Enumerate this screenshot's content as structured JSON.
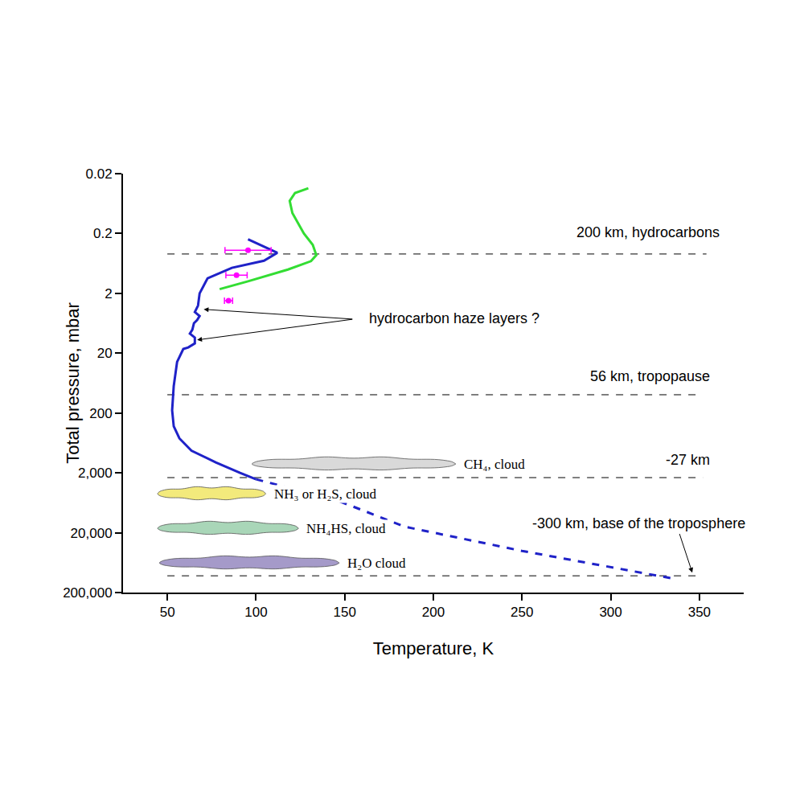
{
  "chart_data": {
    "type": "line",
    "xlabel": "Temperature, K",
    "ylabel": "Total pressure, mbar",
    "xlim": [
      25,
      375
    ],
    "xticks": [
      50,
      100,
      150,
      200,
      250,
      300,
      350
    ],
    "ylim": [
      200000,
      0.02
    ],
    "yticks": [
      0.02,
      0.2,
      2,
      20,
      200,
      {
        "value": 2000,
        "label": "2,000"
      },
      {
        "value": 20000,
        "label": "20,000"
      },
      {
        "value": 200000,
        "label": "200,000"
      }
    ],
    "log": "y",
    "grid": false,
    "series": [
      {
        "type": "line",
        "color": "#1f22c8",
        "line_style": "solid",
        "x": [
          95.5,
          112,
          104.5,
          86.4,
          72.7,
          68.2,
          67.3,
          65.5,
          68.2,
          66.8,
          65,
          64.1,
          62.7,
          65.5,
          65.5,
          61.8,
          59,
          55.5,
          53.6,
          52.7,
          53.6,
          56.8,
          63.6,
          77.3,
          91,
          100
        ],
        "y": [
          0.25,
          0.42,
          0.57,
          0.75,
          1.12,
          2.0,
          3.2,
          4.1,
          4.8,
          5.6,
          6.3,
          8.1,
          9.4,
          11,
          13.7,
          16,
          17,
          28,
          71,
          180,
          332,
          530,
          850,
          1340,
          2000,
          2560
        ]
      },
      {
        "type": "line",
        "color": "#1f22c8",
        "line_style": "dashed",
        "x": [
          100,
          145.5,
          184,
          250,
          334
        ],
        "y": [
          2560,
          5730,
          15900,
          40300,
          115000
        ]
      },
      {
        "type": "line",
        "color": "#33dd33",
        "line_style": "solid",
        "x": [
          79.5,
          95.5,
          118,
          131,
          134,
          132,
          127,
          120.5,
          119,
          122,
          129.5
        ],
        "y": [
          1.7,
          1.26,
          0.8,
          0.58,
          0.46,
          0.31,
          0.2,
          0.091,
          0.057,
          0.042,
          0.035
        ]
      },
      {
        "type": "scatter",
        "color": "#ff00ff",
        "marker": "circle",
        "x": [
          95.5,
          89,
          84.5
        ],
        "y": [
          0.38,
          0.99,
          2.66
        ],
        "x_error": [
          13,
          6,
          2.3
        ]
      }
    ],
    "reference_lines": [
      {
        "pressure": 0.44,
        "x": [
          50,
          354
        ]
      },
      {
        "pressure": 99,
        "x": [
          50,
          349
        ]
      },
      {
        "pressure": 2400,
        "x": [
          50,
          352
        ]
      },
      {
        "pressure": 105000,
        "x": [
          50,
          348
        ]
      }
    ],
    "clouds": [
      {
        "label": "CH₄, cloud",
        "color": "#d9d9d9",
        "t_range": [
          97.7,
          212.7
        ],
        "pressure": 1420
      },
      {
        "label": "NH₃ or H₂S, cloud",
        "color": "#f3ea7c",
        "t_range": [
          44.5,
          105.5
        ],
        "pressure": 4470
      },
      {
        "label": "NH₄HS, cloud",
        "color": "#a9d6b8",
        "t_range": [
          44.5,
          124
        ],
        "pressure": 16900
      },
      {
        "label": "H₂O cloud",
        "color": "#a59ac9",
        "t_range": [
          45.5,
          147
        ],
        "pressure": 64000
      }
    ],
    "annotations": [
      {
        "text": "200 km, hydrocarbons",
        "x": 321,
        "y": 0.19
      },
      {
        "text": "56 km, tropopause",
        "x": 322,
        "y": 49
      },
      {
        "text": "-27 km",
        "x": 343.6,
        "y": 1210
      },
      {
        "text": "-300 km, base of the troposphere",
        "x": 316,
        "y": 14000
      },
      {
        "text": "hydrocarbon haze layers ?",
        "x": 212,
        "y": 5.3
      }
    ],
    "arrows": [
      {
        "from": [
          155,
          5.4
        ],
        "to": [
          70.5,
          3.7
        ]
      },
      {
        "from": [
          155,
          5.4
        ],
        "to": [
          66.8,
          12
        ]
      },
      {
        "from": [
          338.6,
          20000
        ],
        "to": [
          346,
          93000
        ]
      }
    ]
  }
}
